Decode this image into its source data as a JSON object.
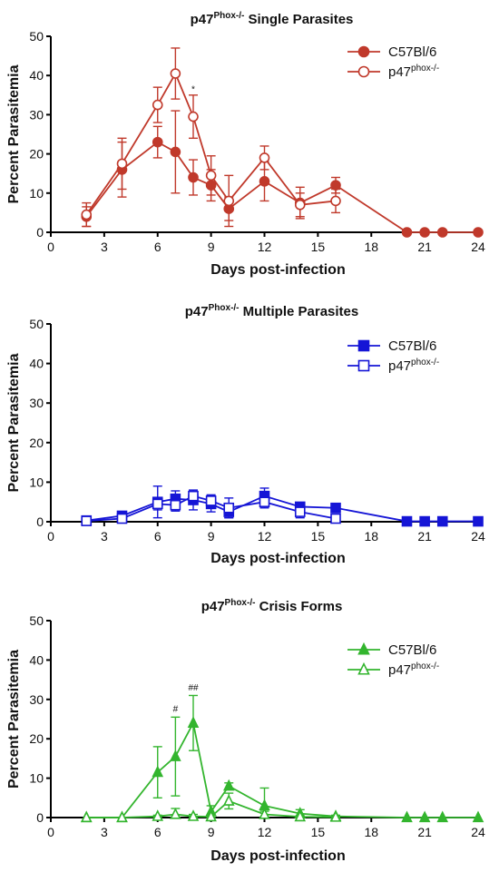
{
  "chart_data": [
    {
      "type": "line",
      "title": "p47",
      "title_sup": "Phox-/-",
      "title_suffix": " Single Parasites",
      "xlabel": "Days post-infection",
      "ylabel": "Percent Parasitemia",
      "xlim": [
        0,
        24
      ],
      "ylim": [
        0,
        50
      ],
      "xticks": [
        0,
        3,
        6,
        9,
        12,
        15,
        18,
        21,
        24
      ],
      "yticks": [
        0,
        10,
        20,
        30,
        40,
        50
      ],
      "legend_position": "top-right",
      "color": "#c0392b",
      "marker": "circle",
      "series": [
        {
          "name": "C57Bl/6",
          "name_sup": "",
          "filled": true,
          "x": [
            2,
            4,
            6,
            7,
            8,
            9,
            10,
            12,
            14,
            16,
            20,
            21,
            22,
            24
          ],
          "y": [
            4,
            16,
            23,
            20.5,
            14,
            12,
            6,
            13,
            7.5,
            12,
            0,
            0,
            0,
            0
          ],
          "err": [
            2.5,
            7,
            4,
            10.5,
            4.5,
            4,
            3,
            5,
            4,
            2,
            0,
            0,
            0,
            0
          ]
        },
        {
          "name": "p47",
          "name_sup": "phox-/-",
          "filled": false,
          "x": [
            2,
            4,
            6,
            7,
            8,
            9,
            10,
            12,
            14,
            16
          ],
          "y": [
            4.5,
            17.5,
            32.5,
            40.5,
            29.5,
            14.5,
            8,
            19,
            7,
            8
          ],
          "err": [
            3,
            6.5,
            4.5,
            6.5,
            5.5,
            5,
            6.5,
            3,
            3,
            3
          ]
        }
      ],
      "annotations": [
        {
          "x": 8,
          "y": 35.8,
          "text": "*"
        }
      ]
    },
    {
      "type": "line",
      "title": "p47",
      "title_sup": "Phox-/-",
      "title_suffix": " Multiple Parasites",
      "xlabel": "Days post-infection",
      "ylabel": "Percent Parasitemia",
      "xlim": [
        0,
        24
      ],
      "ylim": [
        0,
        50
      ],
      "xticks": [
        0,
        3,
        6,
        9,
        12,
        15,
        18,
        21,
        24
      ],
      "yticks": [
        0,
        10,
        20,
        30,
        40,
        50
      ],
      "legend_position": "top-right",
      "color": "#1515d6",
      "marker": "square",
      "series": [
        {
          "name": "C57Bl/6",
          "name_sup": "",
          "filled": true,
          "x": [
            2,
            4,
            6,
            7,
            8,
            9,
            10,
            12,
            14,
            16,
            20,
            21,
            22,
            24
          ],
          "y": [
            0.3,
            1.5,
            5,
            5.8,
            5.5,
            4.5,
            2.5,
            6.5,
            3.8,
            3.5,
            0.1,
            0.1,
            0.1,
            0.1
          ],
          "err": [
            0.5,
            1,
            4,
            2,
            2.5,
            2,
            1.5,
            2,
            1,
            1,
            0,
            0,
            0,
            0
          ]
        },
        {
          "name": "p47",
          "name_sup": "phox-/-",
          "filled": false,
          "x": [
            2,
            4,
            6,
            7,
            8,
            9,
            10,
            12,
            14,
            16
          ],
          "y": [
            0.2,
            0.8,
            4.5,
            4.2,
            6.5,
            5.3,
            3.5,
            5,
            2.5,
            0.8
          ],
          "err": [
            0.3,
            0.8,
            1.5,
            1.5,
            1.5,
            1.5,
            2.5,
            1.5,
            1.5,
            0.8
          ]
        }
      ]
    },
    {
      "type": "line",
      "title": "p47",
      "title_sup": "Phox-/-",
      "title_suffix": " Crisis Forms",
      "xlabel": "Days post-infection",
      "ylabel": "Percent Parasitemia",
      "xlim": [
        0,
        24
      ],
      "ylim": [
        0,
        50
      ],
      "xticks": [
        0,
        3,
        6,
        9,
        12,
        15,
        18,
        21,
        24
      ],
      "yticks": [
        0,
        10,
        20,
        30,
        40,
        50
      ],
      "legend_position": "top-right",
      "color": "#33b52e",
      "marker": "triangle",
      "series": [
        {
          "name": "C57Bl/6",
          "name_sup": "",
          "filled": true,
          "x": [
            2,
            4,
            6,
            7,
            8,
            9,
            10,
            12,
            14,
            16,
            20,
            21,
            22,
            24
          ],
          "y": [
            0,
            0,
            11.5,
            15.5,
            24,
            1.5,
            8,
            3,
            1,
            0.3,
            0,
            0,
            0,
            0
          ],
          "err": [
            0,
            0,
            6.5,
            10,
            7,
            1.5,
            0.8,
            4.5,
            1,
            0.3,
            0,
            0,
            0,
            0
          ]
        },
        {
          "name": "p47",
          "name_sup": "phox-/-",
          "filled": false,
          "x": [
            2,
            4,
            6,
            7,
            8,
            9,
            10,
            12,
            14,
            16
          ],
          "y": [
            0,
            0,
            0.3,
            0.8,
            0.3,
            0.2,
            4.2,
            0.8,
            0.2,
            0.1
          ],
          "err": [
            0,
            0,
            0.3,
            1.5,
            0.5,
            0.3,
            2,
            0.8,
            0.3,
            0.1
          ]
        }
      ],
      "annotations": [
        {
          "x": 7,
          "y": 26.8,
          "text": "#"
        },
        {
          "x": 8,
          "y": 32.3,
          "text": "##"
        }
      ]
    }
  ]
}
